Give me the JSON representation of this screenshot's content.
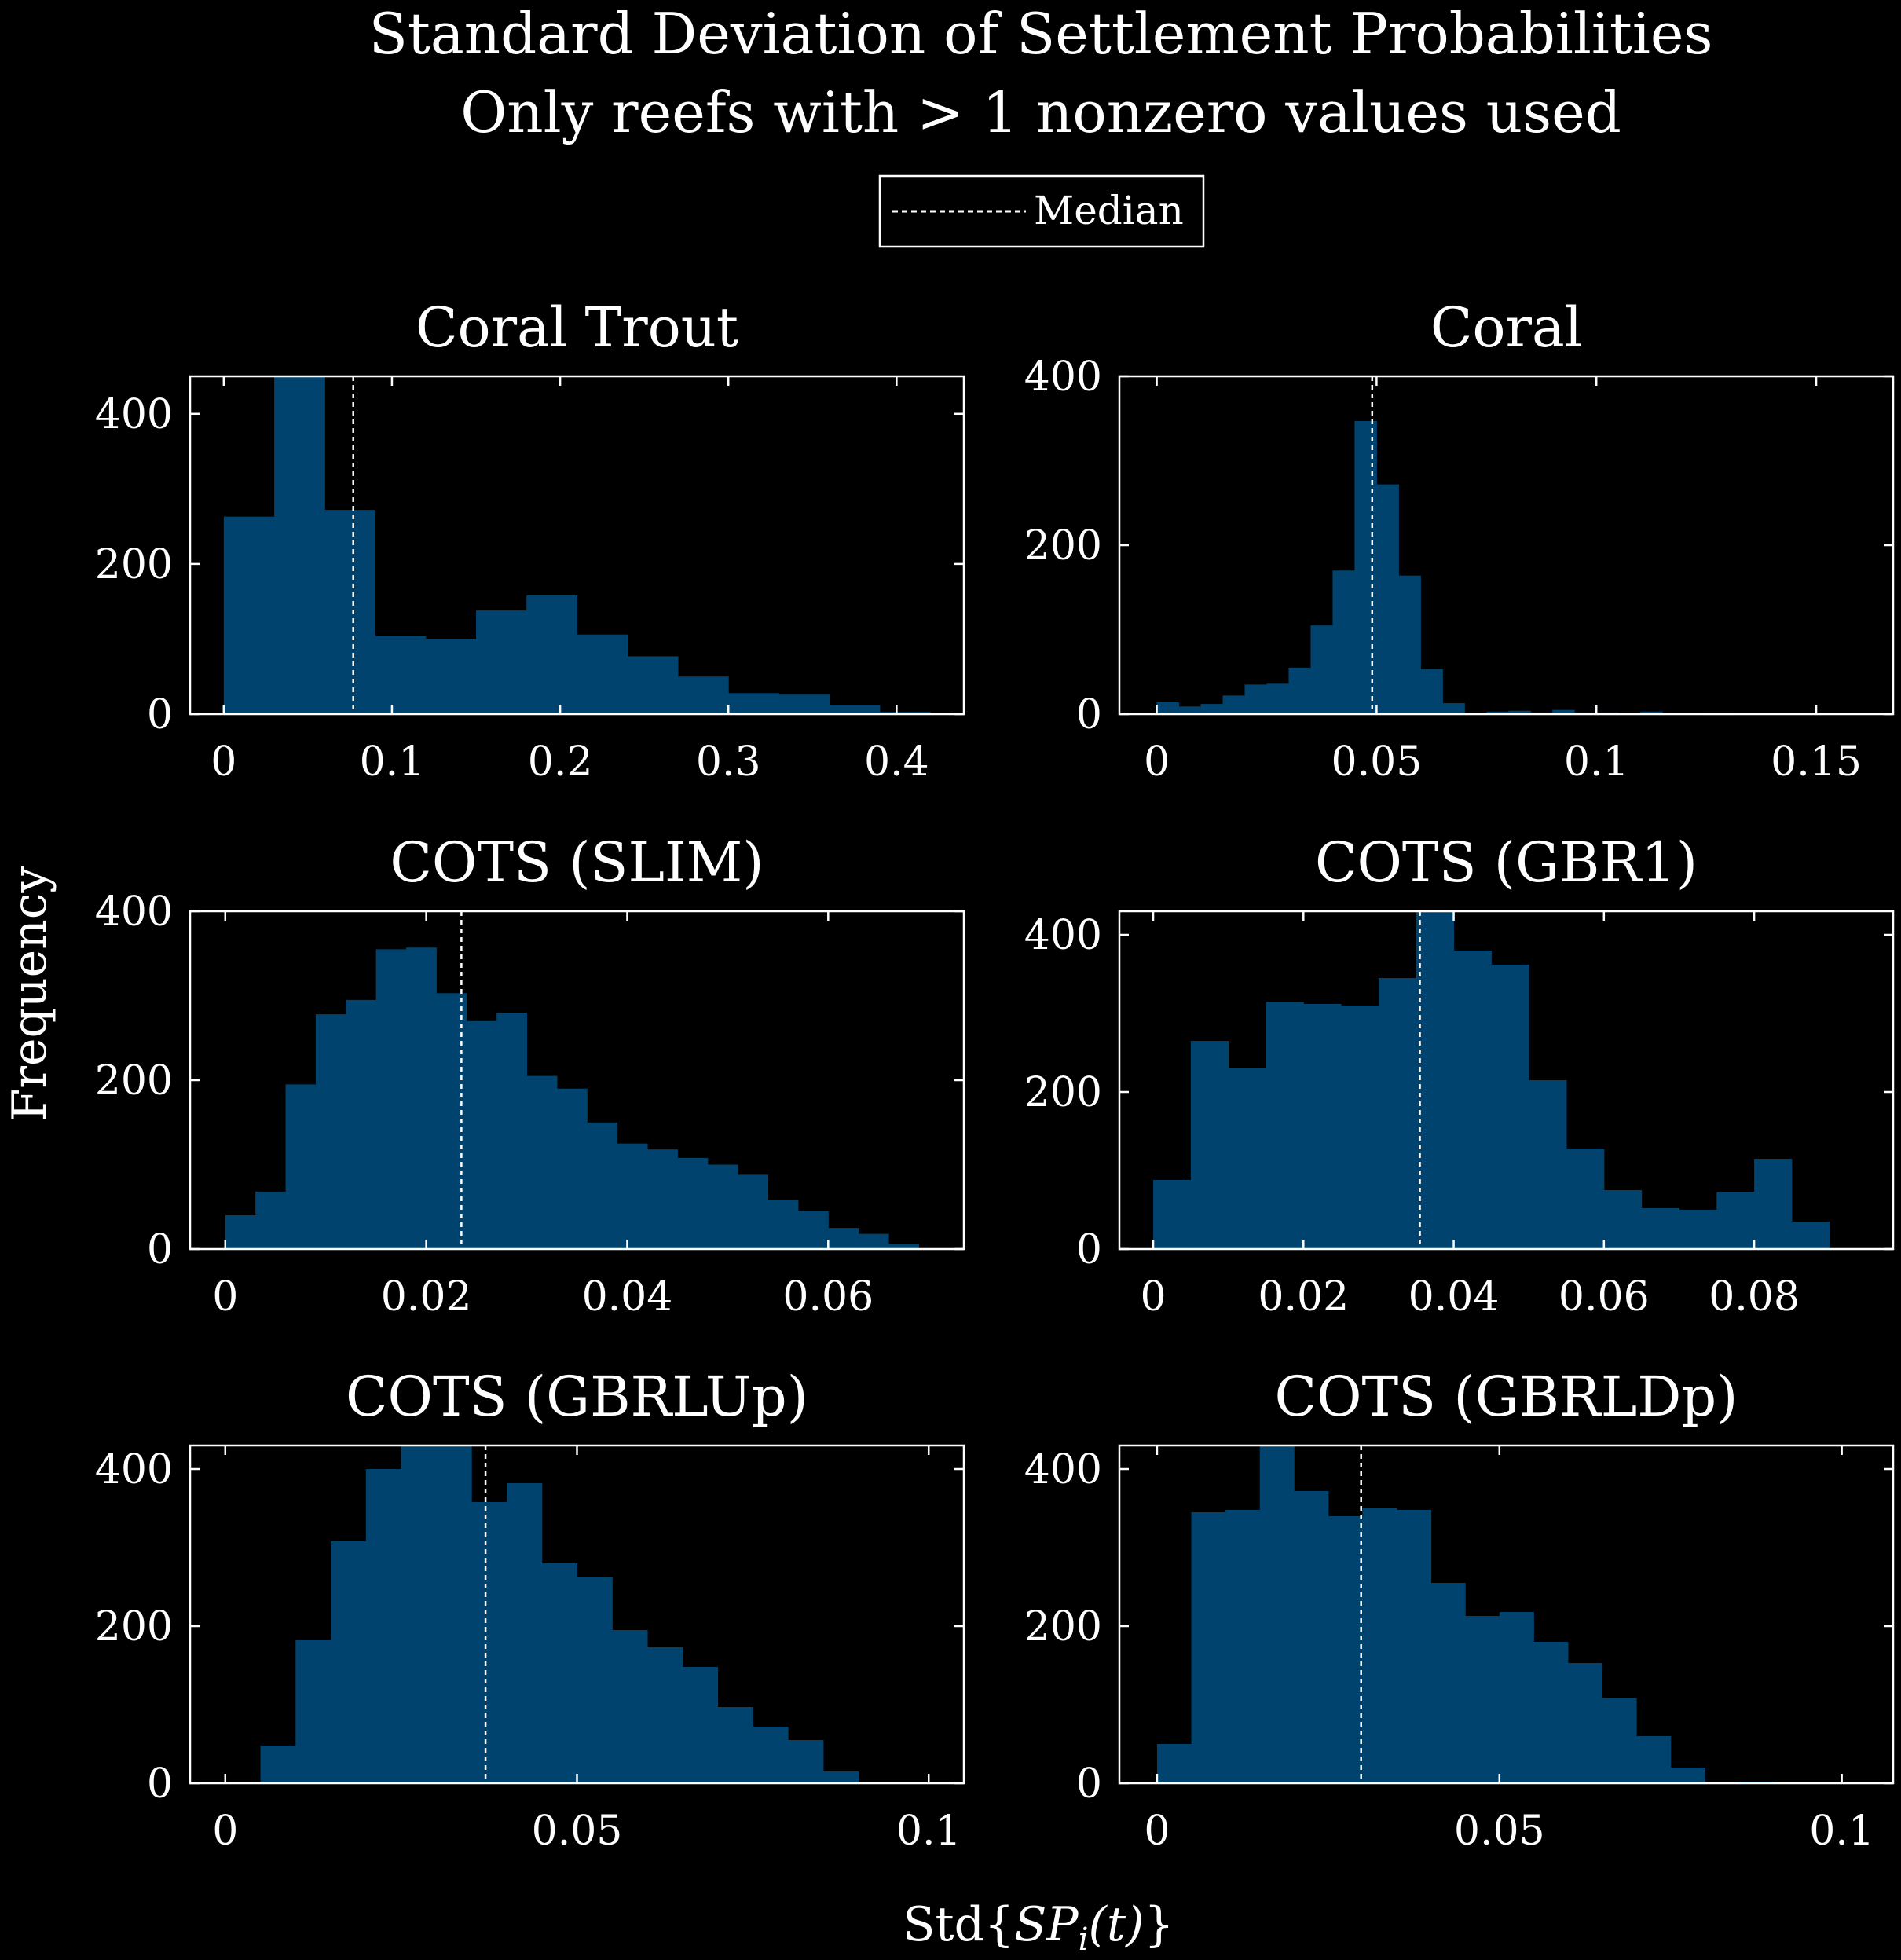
{
  "figure": {
    "title_line1": "Standard Deviation of Settlement Probabilities",
    "title_line2": "Only reefs with > 1 nonzero values used",
    "ylabel": "Frequency",
    "xlabel": "Std{SP_i(t)}",
    "xlabel_main": "Std",
    "xlabel_brace_open": "{",
    "xlabel_SP": "SP",
    "xlabel_sub": "i",
    "xlabel_arg": "(t)",
    "xlabel_brace_close": "}",
    "legend_label": "Median",
    "bar_color": "#00436e",
    "median_line_color": "#ffffff",
    "background_color": "#000000",
    "axis_color": "#ffffff"
  },
  "chart_data": [
    {
      "type": "bar",
      "title": "Coral Trout",
      "xlim": [
        -0.02,
        0.44
      ],
      "ylim": [
        0,
        450
      ],
      "xticks": [
        0,
        0.1,
        0.2,
        0.3,
        0.4
      ],
      "xtick_labels": [
        "0",
        "0.1",
        "0.2",
        "0.3",
        "0.4"
      ],
      "yticks": [
        0,
        200,
        400
      ],
      "ytick_labels": [
        "0",
        "200",
        "400"
      ],
      "bin_start": 0,
      "bin_width": 0.03,
      "values": [
        263,
        460,
        272,
        104,
        100,
        138,
        158,
        106,
        77,
        50,
        28,
        26,
        12,
        3
      ],
      "median": 0.077,
      "legend": "top-center"
    },
    {
      "type": "bar",
      "title": "Coral",
      "xlim": [
        -0.0085,
        0.1675
      ],
      "ylim": [
        0,
        400
      ],
      "xticks": [
        0,
        0.05,
        0.1,
        0.15
      ],
      "xtick_labels": [
        "0",
        "0.05",
        "0.1",
        "0.15"
      ],
      "yticks": [
        0,
        200,
        400
      ],
      "ytick_labels": [
        "0",
        "200",
        "400"
      ],
      "bin_start": 0,
      "bin_width": 0.005,
      "values": [
        14,
        9,
        12,
        22,
        35,
        36,
        55,
        105,
        170,
        347,
        272,
        164,
        53,
        13,
        1,
        3,
        4,
        2,
        5,
        2,
        2,
        1,
        3,
        0,
        0,
        1,
        0,
        0,
        0,
        0,
        0,
        0
      ],
      "median": 0.049
    },
    {
      "type": "bar",
      "title": "COTS (SLIM)",
      "xlim": [
        -0.0035,
        0.0735
      ],
      "ylim": [
        0,
        400
      ],
      "xticks": [
        0,
        0.02,
        0.04,
        0.06
      ],
      "xtick_labels": [
        "0",
        "0.02",
        "0.04",
        "0.06"
      ],
      "yticks": [
        0,
        200,
        400
      ],
      "ytick_labels": [
        "0",
        "200",
        "400"
      ],
      "bin_start": 0,
      "bin_width": 0.003,
      "values": [
        40,
        68,
        195,
        278,
        295,
        355,
        357,
        303,
        270,
        280,
        205,
        190,
        150,
        125,
        118,
        108,
        100,
        88,
        58,
        45,
        25,
        18,
        6
      ],
      "median": 0.0235
    },
    {
      "type": "bar",
      "title": "COTS (GBR1)",
      "xlim": [
        -0.0045,
        0.0985
      ],
      "ylim": [
        0,
        430
      ],
      "xticks": [
        0,
        0.02,
        0.04,
        0.06,
        0.08
      ],
      "xtick_labels": [
        "0",
        "0.02",
        "0.04",
        "0.06",
        "0.08"
      ],
      "yticks": [
        0,
        200,
        400
      ],
      "ytick_labels": [
        "0",
        "200",
        "400"
      ],
      "bin_start": 0,
      "bin_width": 0.005,
      "values": [
        88,
        265,
        230,
        315,
        312,
        310,
        345,
        430,
        380,
        362,
        215,
        128,
        75,
        52,
        50,
        73,
        115,
        35
      ],
      "median": 0.0355
    },
    {
      "type": "bar",
      "title": "COTS (GBRLUp)",
      "xlim": [
        -0.005,
        0.105
      ],
      "ylim": [
        0,
        430
      ],
      "xticks": [
        0,
        0.05,
        0.1
      ],
      "xtick_labels": [
        "0",
        "0.05",
        "0.1"
      ],
      "yticks": [
        0,
        200,
        400
      ],
      "ytick_labels": [
        "0",
        "200",
        "400"
      ],
      "bin_start": 0,
      "bin_width": 0.005,
      "values": [
        0,
        48,
        182,
        308,
        400,
        430,
        430,
        358,
        382,
        280,
        262,
        195,
        173,
        148,
        97,
        72,
        55,
        15,
        0,
        0,
        0
      ],
      "median": 0.037
    },
    {
      "type": "bar",
      "title": "COTS (GBRLDp)",
      "xlim": [
        -0.0055,
        0.1075
      ],
      "ylim": [
        0,
        430
      ],
      "xticks": [
        0,
        0.05,
        0.1
      ],
      "xtick_labels": [
        "0",
        "0.05",
        "0.1"
      ],
      "yticks": [
        0,
        200,
        400
      ],
      "ytick_labels": [
        "0",
        "200",
        "400"
      ],
      "bin_start": 0,
      "bin_width": 0.005,
      "values": [
        50,
        345,
        348,
        430,
        372,
        340,
        350,
        348,
        255,
        213,
        218,
        180,
        153,
        108,
        60,
        20,
        0,
        2
      ],
      "median": 0.0298
    }
  ]
}
